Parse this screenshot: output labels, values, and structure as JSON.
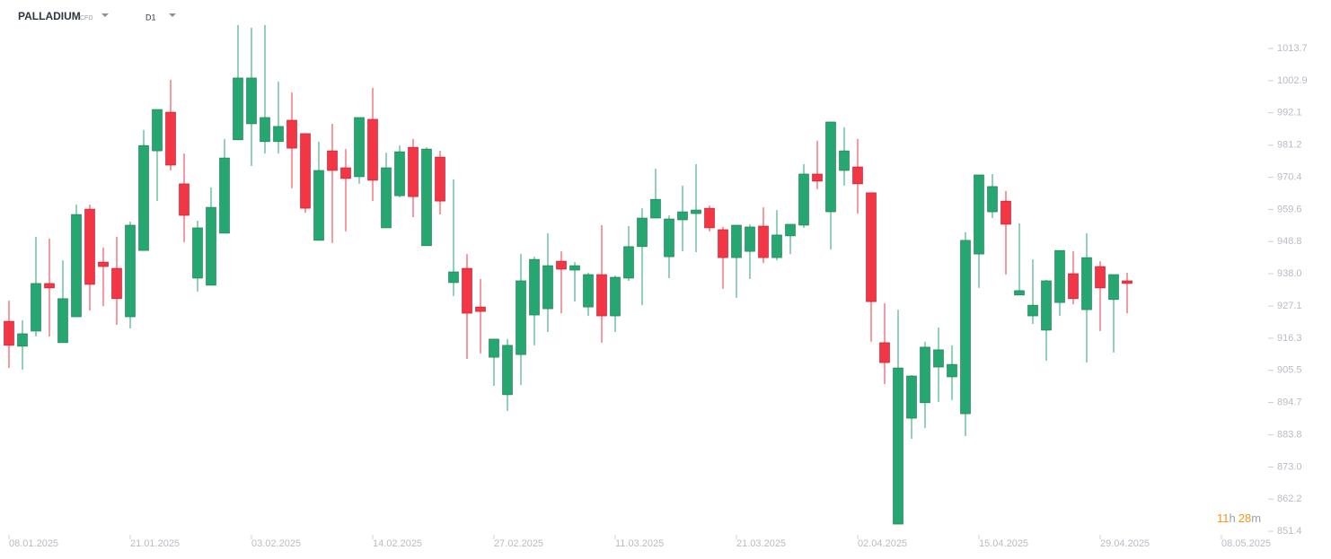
{
  "header": {
    "symbol": "PALLADIUM",
    "instrument_type": "CFD",
    "timeframe": "D1"
  },
  "countdown": {
    "hours": "11",
    "hours_unit": "h",
    "minutes": "28",
    "minutes_unit": "m"
  },
  "chart_data": {
    "type": "candlestick",
    "up_color": "#26a671",
    "down_color": "#f23645",
    "xlim": [
      -0.5,
      92.5
    ],
    "xticks": [
      {
        "value": 0,
        "label": "08.01.2025"
      },
      {
        "value": 9,
        "label": "21.01.2025"
      },
      {
        "value": 18,
        "label": "03.02.2025"
      },
      {
        "value": 27,
        "label": "14.02.2025"
      },
      {
        "value": 36,
        "label": "27.02.2025"
      },
      {
        "value": 45,
        "label": "11.03.2025"
      },
      {
        "value": 54,
        "label": "21.03.2025"
      },
      {
        "value": 63,
        "label": "02.04.2025"
      },
      {
        "value": 72,
        "label": "15.04.2025"
      },
      {
        "value": 81,
        "label": "29.04.2025"
      },
      {
        "value": 90,
        "label": "08.05.2025"
      }
    ],
    "ylim": [
      849,
      1027
    ],
    "yticks": [
      1013.7,
      1002.9,
      992.1,
      981.2,
      970.4,
      959.6,
      948.8,
      {
        "value": 938,
        "label": "938.0"
      },
      927.1,
      916.3,
      905.5,
      894.7,
      883.8,
      {
        "value": 873,
        "label": "873.0"
      },
      862.2,
      851.4
    ],
    "open": [
      922.0,
      913.6,
      918.7,
      934.7,
      914.8,
      923.5,
      959.7,
      941.9,
      939.8,
      923.5,
      945.8,
      979.3,
      992.3,
      968.2,
      936.5,
      934.1,
      951.6,
      983.0,
      988.4,
      982.4,
      982.4,
      989.6,
      985.1,
      949.2,
      979.3,
      973.6,
      970.6,
      989.9,
      953.4,
      964.2,
      980.5,
      947.4,
      977.2,
      935.0,
      939.8,
      926.8,
      909.9,
      897.3,
      910.8,
      924.1,
      926.2,
      942.2,
      939.2,
      926.8,
      937.7,
      923.8,
      936.5,
      947.1,
      956.7,
      943.7,
      956.1,
      958.2,
      960.0,
      952.8,
      943.4,
      945.5,
      954.0,
      943.4,
      950.7,
      954.3,
      971.5,
      958.8,
      972.7,
      973.9,
      965.2,
      914.8,
      853.8,
      889.4,
      894.6,
      906.6,
      903.3,
      890.9,
      944.6,
      958.8,
      962.4,
      930.8,
      923.8,
      919.0,
      928.3,
      938.0,
      925.9,
      940.4,
      929.3,
      935.6
    ],
    "high": [
      928.9,
      922.3,
      950.4,
      949.8,
      942.5,
      961.2,
      961.2,
      946.8,
      950.4,
      955.5,
      986.3,
      993.2,
      1003.2,
      978.4,
      955.8,
      967.0,
      983.3,
      1021.6,
      1020.7,
      1021.6,
      1002.6,
      998.9,
      985.1,
      982.4,
      988.4,
      979.9,
      990.5,
      1000.5,
      978.7,
      981.1,
      983.3,
      980.5,
      979.3,
      969.7,
      944.6,
      936.2,
      916.0,
      916.0,
      944.6,
      943.7,
      951.6,
      945.5,
      941.9,
      938.3,
      954.3,
      937.4,
      954.0,
      960.0,
      973.3,
      957.6,
      967.6,
      974.8,
      960.9,
      953.7,
      954.3,
      954.6,
      960.3,
      959.4,
      954.6,
      974.8,
      982.7,
      989.0,
      987.2,
      983.3,
      965.2,
      928.0,
      925.9,
      903.9,
      915.1,
      919.9,
      913.9,
      951.9,
      971.2,
      971.5,
      965.8,
      954.9,
      942.8,
      935.9,
      945.8,
      945.5,
      951.6,
      942.2,
      937.7,
      938.3
    ],
    "low": [
      906.3,
      905.7,
      916.9,
      916.9,
      914.8,
      923.5,
      925.6,
      927.1,
      920.8,
      919.6,
      945.8,
      962.4,
      972.7,
      948.6,
      932.0,
      934.1,
      951.6,
      983.0,
      974.2,
      978.4,
      978.4,
      966.7,
      958.5,
      949.2,
      948.3,
      952.2,
      968.2,
      962.4,
      953.4,
      963.6,
      957.0,
      947.4,
      957.9,
      930.5,
      909.3,
      911.2,
      900.3,
      891.8,
      900.6,
      913.9,
      918.4,
      924.7,
      928.6,
      923.8,
      914.8,
      918.4,
      935.6,
      927.4,
      956.7,
      936.5,
      945.5,
      945.2,
      952.2,
      932.9,
      929.9,
      936.2,
      941.6,
      942.5,
      944.6,
      953.4,
      966.4,
      946.1,
      967.6,
      958.2,
      915.1,
      900.9,
      853.8,
      882.5,
      886.1,
      894.9,
      895.5,
      883.4,
      933.2,
      956.7,
      937.7,
      930.8,
      921.1,
      908.7,
      923.8,
      927.7,
      908.1,
      918.7,
      911.5,
      924.7
    ],
    "close": [
      913.9,
      917.8,
      934.7,
      933.2,
      929.6,
      957.9,
      934.4,
      940.4,
      929.6,
      954.3,
      981.1,
      993.2,
      974.5,
      957.6,
      953.4,
      960.3,
      976.9,
      1003.8,
      1003.8,
      990.5,
      987.5,
      980.2,
      960.0,
      972.7,
      972.7,
      970.0,
      990.5,
      969.4,
      973.6,
      979.0,
      963.9,
      979.9,
      962.4,
      938.6,
      924.7,
      925.3,
      916.0,
      913.9,
      935.6,
      942.8,
      940.7,
      939.5,
      940.7,
      937.7,
      923.8,
      936.8,
      947.1,
      956.7,
      963.0,
      956.4,
      958.8,
      959.4,
      953.4,
      943.4,
      954.3,
      953.7,
      943.4,
      951.0,
      954.6,
      971.5,
      969.1,
      989.0,
      979.3,
      968.2,
      928.6,
      908.1,
      906.3,
      903.6,
      913.3,
      912.4,
      907.5,
      949.2,
      971.2,
      967.3,
      954.6,
      932.3,
      927.4,
      935.6,
      945.8,
      929.6,
      943.4,
      933.2,
      937.7,
      934.7
    ]
  }
}
